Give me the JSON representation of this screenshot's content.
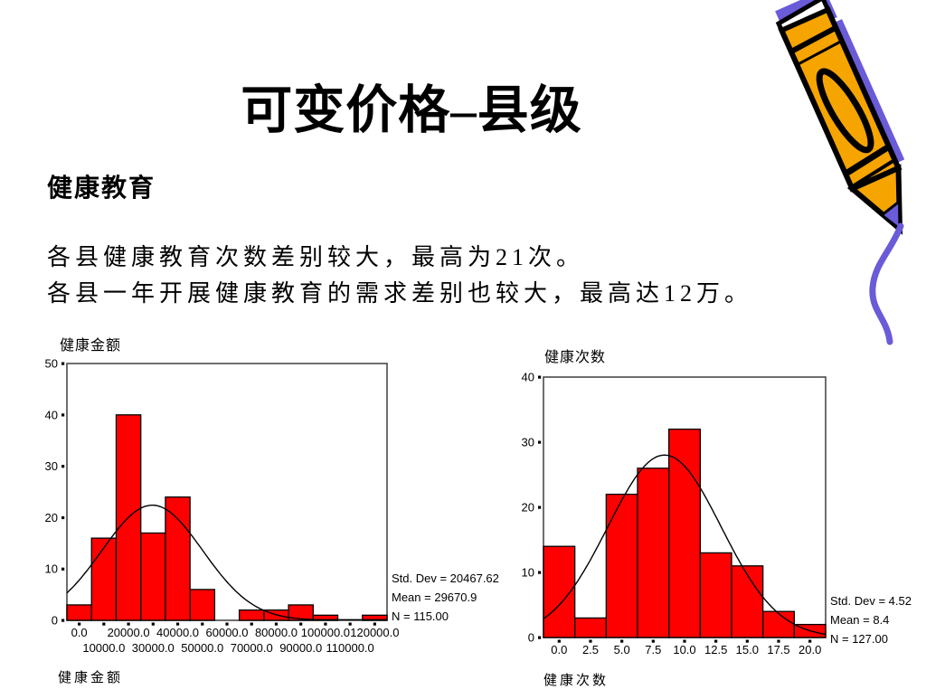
{
  "slide": {
    "title": "可变价格–县级",
    "section_heading": "健康教育",
    "body_lines": [
      "各县健康教育次数差别较大，最高为21次。",
      "各县一年开展健康教育的需求差别也较大，最高达12万。"
    ]
  },
  "decoration": {
    "pencil": {
      "description": "pencil-clipart drawing a squiggle",
      "body_color": "#F6A400",
      "accent_color": "#6A5BD8",
      "outline_color": "#000000"
    }
  },
  "chart_data": [
    {
      "type": "bar",
      "subtype": "histogram",
      "title": "健康金额",
      "xlabel": "健康金额",
      "bar_color": "#FF0000",
      "frame_color": "#4A4A4A",
      "grid": false,
      "legend": false,
      "bin_width": 10000,
      "bin_centers": [
        0,
        10000,
        20000,
        30000,
        40000,
        50000,
        60000,
        70000,
        80000,
        90000,
        100000,
        110000,
        120000
      ],
      "values": [
        3,
        16,
        40,
        17,
        24,
        6,
        0,
        2,
        2,
        3,
        1,
        0,
        1
      ],
      "x_range": [
        -5000,
        125000
      ],
      "y_range": [
        0,
        50
      ],
      "y_ticks": [
        0,
        10,
        20,
        30,
        40,
        50
      ],
      "x_tick_values": [
        0,
        10000,
        20000,
        30000,
        40000,
        50000,
        60000,
        70000,
        80000,
        90000,
        100000,
        110000,
        120000
      ],
      "x_tick_labels": [
        "0.0",
        "10000.0",
        "20000.0",
        "30000.0",
        "40000.0",
        "50000.0",
        "60000.0",
        "70000.0",
        "80000.0",
        "90000.0",
        "100000.0",
        "110000.0",
        "120000.0"
      ],
      "x_tick_stagger": true,
      "normal_curve": {
        "mean": 29670.9,
        "std_dev": 20467.62,
        "n": 115
      },
      "stats_lines": [
        "Std. Dev = 20467.62",
        "Mean = 29670.9",
        "N = 115.00"
      ]
    },
    {
      "type": "bar",
      "subtype": "histogram",
      "title": "健康次数",
      "xlabel": "健康次数",
      "bar_color": "#FF0000",
      "frame_color": "#4A4A4A",
      "grid": false,
      "legend": false,
      "bin_width": 2.5,
      "bin_centers": [
        0,
        2.5,
        5,
        7.5,
        10,
        12.5,
        15,
        17.5,
        20
      ],
      "values": [
        14,
        3,
        22,
        26,
        32,
        13,
        11,
        4,
        2
      ],
      "x_range": [
        -1.25,
        21.25
      ],
      "y_range": [
        0,
        40
      ],
      "y_ticks": [
        0,
        10,
        20,
        30,
        40
      ],
      "x_tick_values": [
        0,
        2.5,
        5,
        7.5,
        10,
        12.5,
        15,
        17.5,
        20
      ],
      "x_tick_labels": [
        "0.0",
        "2.5",
        "5.0",
        "7.5",
        "10.0",
        "12.5",
        "15.0",
        "17.5",
        "20.0"
      ],
      "x_tick_stagger": false,
      "normal_curve": {
        "mean": 8.4,
        "std_dev": 4.52,
        "n": 127
      },
      "stats_lines": [
        "Std. Dev = 4.52",
        "Mean = 8.4",
        "N = 127.00"
      ]
    }
  ]
}
